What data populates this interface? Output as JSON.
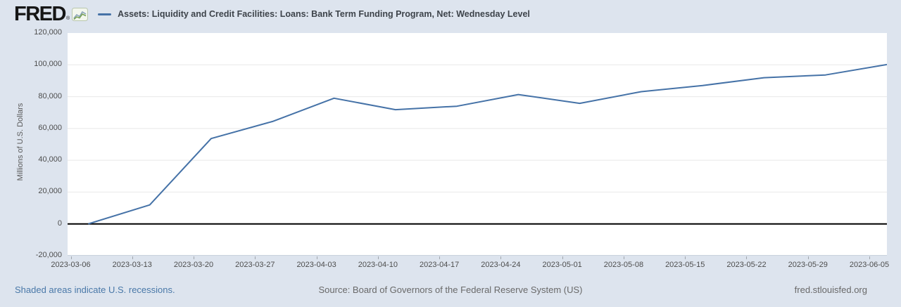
{
  "header": {
    "logo_text": "FRED",
    "logo_reg": "®",
    "series_label": "Assets: Liquidity and Credit Facilities: Loans: Bank Term Funding Program, Net: Wednesday Level"
  },
  "chart_data": {
    "type": "line",
    "title": "Assets: Liquidity and Credit Facilities: Loans: Bank Term Funding Program, Net: Wednesday Level",
    "ylabel": "Millions of U.S. Dollars",
    "ylim": [
      -20000,
      120000
    ],
    "y_ticks": [
      120000,
      100000,
      80000,
      60000,
      40000,
      20000,
      0,
      -20000
    ],
    "y_tick_labels": [
      "120,000",
      "100,000",
      "80,000",
      "60,000",
      "40,000",
      "20,000",
      "0",
      "-20,000"
    ],
    "x_tick_labels": [
      "2023-03-06",
      "2023-03-13",
      "2023-03-20",
      "2023-03-27",
      "2023-04-03",
      "2023-04-10",
      "2023-04-17",
      "2023-04-24",
      "2023-05-01",
      "2023-05-08",
      "2023-05-15",
      "2023-05-22",
      "2023-05-29",
      "2023-06-05"
    ],
    "x": [
      "2023-03-08",
      "2023-03-15",
      "2023-03-22",
      "2023-03-29",
      "2023-04-05",
      "2023-04-12",
      "2023-04-19",
      "2023-04-26",
      "2023-05-03",
      "2023-05-10",
      "2023-05-17",
      "2023-05-24",
      "2023-05-31",
      "2023-06-07"
    ],
    "values": [
      0,
      11943,
      53669,
      64403,
      79021,
      71837,
      73982,
      81327,
      75778,
      83101,
      87006,
      91907,
      93615,
      100161
    ],
    "grid": "horizontal",
    "legend_position": "top",
    "line_color": "#4572a7",
    "zero_line_color": "#000000",
    "grid_color": "#e8e8e8"
  },
  "footer": {
    "notes": "Shaded areas indicate U.S. recessions.",
    "source": "Source: Board of Governors of the Federal Reserve System (US)",
    "site": "fred.stlouisfed.org"
  },
  "colors": {
    "background": "#dde4ee",
    "plot_background": "#ffffff",
    "link": "#4978a8",
    "muted_text": "#696969",
    "tick_text": "#4d4d4d",
    "title_text": "#3d434a"
  }
}
